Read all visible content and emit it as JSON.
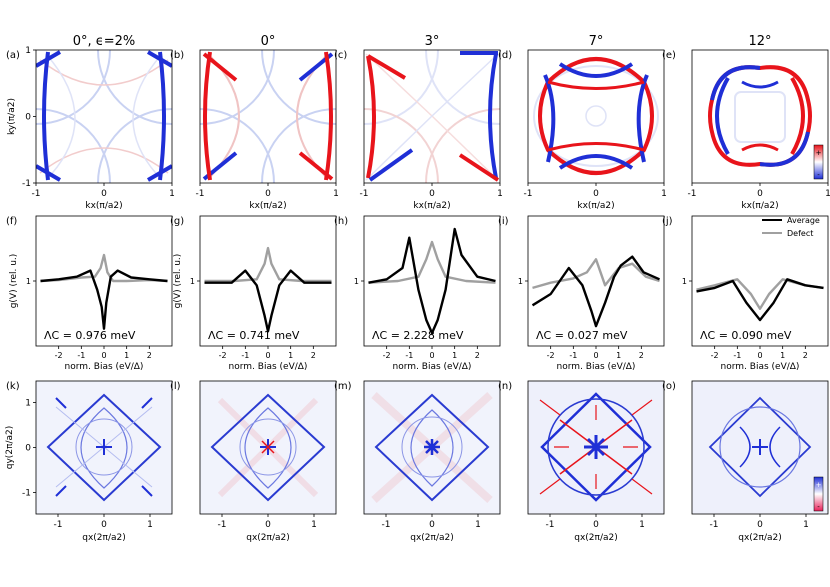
{
  "figure": {
    "columns": [
      {
        "title": "0$^\\circ$, $\\epsilon$=2%",
        "title_text": "0°, ϵ=2%"
      },
      {
        "title_text": "0°"
      },
      {
        "title_text": "3°"
      },
      {
        "title_text": "7°"
      },
      {
        "title_text": "12°"
      }
    ],
    "row1": {
      "labels": [
        "(a)",
        "(b)",
        "(c)",
        "(d)",
        "(e)"
      ],
      "xlabel": "kx(π/a2)",
      "ylabel": "ky(π/a2)",
      "xticks": [
        "-1",
        "0",
        "1"
      ],
      "yticks": [
        "1",
        "0",
        "-1"
      ],
      "colorbar_ticks": [
        "+",
        "-"
      ],
      "colors": {
        "positive": "#e8141b",
        "negative": "#1f2fd6"
      }
    },
    "row2": {
      "labels": [
        "(f)",
        "(g)",
        "(h)",
        "(i)",
        "(j)"
      ],
      "xlabel": "norm. Bias (eV/Δ)",
      "ylabel": "g(V) (rel. u.)",
      "xticks": [
        "-2",
        "-1",
        "0",
        "1",
        "2"
      ],
      "ytick": "1",
      "lambda": [
        "ΛC = 0.976 meV",
        "ΛC = 0.741 meV",
        "ΛC = 2.228 meV",
        "ΛC = 0.027 meV",
        "ΛC = 0.090 meV"
      ],
      "legend": [
        {
          "name": "Average",
          "color": "#000000"
        },
        {
          "name": "Defect",
          "color": "#a0a0a0"
        }
      ]
    },
    "row3": {
      "labels": [
        "(k)",
        "(l)",
        "(m)",
        "(n)",
        "(o)"
      ],
      "xlabel": "qx(2π/a2)",
      "ylabel": "qy(2π/a2)",
      "xticks": [
        "-1",
        "0",
        "1"
      ],
      "yticks": [
        "1",
        "0",
        "-1"
      ],
      "colorbar_ticks": [
        "+",
        "-"
      ]
    }
  },
  "chart_data": [
    {
      "type": "line",
      "panel": "(f)",
      "xlabel": "norm. Bias (eV/Δ)",
      "ylabel": "g(V) (rel. u.)",
      "series": [
        {
          "name": "Average",
          "x": [
            -2.8,
            -2,
            -1.2,
            -0.6,
            -0.3,
            -0.1,
            0,
            0.1,
            0.3,
            0.6,
            1.2,
            2,
            2.8
          ],
          "y": [
            1.0,
            1.02,
            1.05,
            1.12,
            0.9,
            0.7,
            0.45,
            0.75,
            1.05,
            1.12,
            1.04,
            1.02,
            1.0
          ]
        },
        {
          "name": "Defect",
          "x": [
            -2.8,
            -2,
            -1,
            -0.4,
            -0.15,
            0,
            0.15,
            0.4,
            1,
            2,
            2.8
          ],
          "y": [
            1.0,
            1.01,
            1.04,
            1.05,
            1.15,
            1.3,
            1.1,
            1.0,
            1.0,
            1.01,
            1.0
          ]
        }
      ],
      "annotation": "ΛC = 0.976 meV"
    },
    {
      "type": "line",
      "panel": "(g)",
      "xlabel": "norm. Bias (eV/Δ)",
      "ylabel": "g(V) (rel. u.)",
      "series": [
        {
          "name": "Average",
          "x": [
            -2.8,
            -1.6,
            -1,
            -0.5,
            -0.15,
            0,
            0.15,
            0.5,
            1,
            1.6,
            2.8
          ],
          "y": [
            0.98,
            0.98,
            1.12,
            0.95,
            0.6,
            0.42,
            0.6,
            0.95,
            1.12,
            0.98,
            0.98
          ]
        },
        {
          "name": "Defect",
          "x": [
            -2.8,
            -1.5,
            -0.5,
            -0.15,
            0,
            0.15,
            0.5,
            1.5,
            2.8
          ],
          "y": [
            1.0,
            1.0,
            1.02,
            1.2,
            1.38,
            1.2,
            1.02,
            1.0,
            1.0
          ]
        }
      ],
      "annotation": "ΛC = 0.741 meV"
    },
    {
      "type": "line",
      "panel": "(h)",
      "xlabel": "norm. Bias (eV/Δ)",
      "series": [
        {
          "name": "Average",
          "x": [
            -2.8,
            -2,
            -1.3,
            -1,
            -0.6,
            -0.25,
            0,
            0.25,
            0.6,
            1,
            1.3,
            2,
            2.8
          ],
          "y": [
            0.98,
            1.02,
            1.15,
            1.5,
            0.9,
            0.55,
            0.4,
            0.55,
            0.9,
            1.6,
            1.3,
            1.05,
            1.0
          ]
        },
        {
          "name": "Defect",
          "x": [
            -2.8,
            -1.5,
            -0.6,
            -0.25,
            0,
            0.25,
            0.6,
            1.5,
            2.8
          ],
          "y": [
            0.98,
            1.0,
            1.05,
            1.25,
            1.45,
            1.25,
            1.05,
            1.0,
            0.98
          ]
        }
      ],
      "annotation": "ΛC = 2.228 meV"
    },
    {
      "type": "line",
      "panel": "(i)",
      "xlabel": "norm. Bias (eV/Δ)",
      "series": [
        {
          "name": "Average",
          "x": [
            -2.8,
            -2,
            -1.2,
            -0.6,
            -0.2,
            0,
            0.4,
            0.8,
            1.1,
            1.6,
            2.1,
            2.8
          ],
          "y": [
            0.72,
            0.85,
            1.15,
            0.95,
            0.65,
            0.48,
            0.75,
            1.05,
            1.18,
            1.28,
            1.1,
            1.02
          ]
        },
        {
          "name": "Defect",
          "x": [
            -2.8,
            -2,
            -1,
            -0.4,
            0,
            0.4,
            1,
            1.6,
            2.2,
            2.8
          ],
          "y": [
            0.92,
            0.98,
            1.03,
            1.1,
            1.25,
            0.95,
            1.15,
            1.2,
            1.05,
            1.0
          ]
        }
      ],
      "annotation": "ΛC = 0.027 meV"
    },
    {
      "type": "line",
      "panel": "(j)",
      "xlabel": "norm. Bias (eV/Δ)",
      "series": [
        {
          "name": "Average",
          "x": [
            -2.8,
            -2,
            -1.2,
            -0.6,
            0,
            0.6,
            1.2,
            2,
            2.8
          ],
          "y": [
            0.88,
            0.92,
            1.0,
            0.75,
            0.55,
            0.75,
            1.02,
            0.95,
            0.92
          ]
        },
        {
          "name": "Defect",
          "x": [
            -2.8,
            -2,
            -1,
            -0.4,
            0,
            0.4,
            1,
            2,
            2.8
          ],
          "y": [
            0.9,
            0.95,
            1.02,
            0.85,
            0.68,
            0.85,
            1.02,
            0.95,
            0.92
          ]
        }
      ],
      "annotation": "ΛC = 0.090 meV"
    }
  ]
}
